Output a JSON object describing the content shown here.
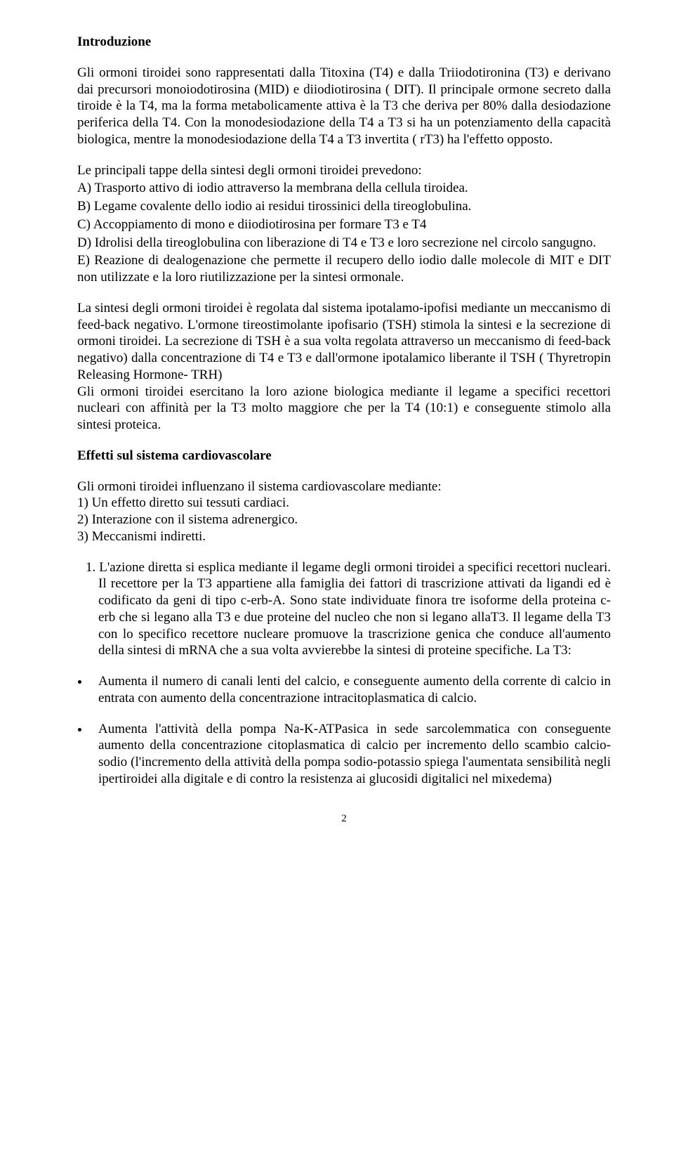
{
  "page": {
    "background_color": "#ffffff",
    "text_color": "#000000",
    "font_family": "Times New Roman",
    "body_font_size_pt": 14,
    "page_number_font_size_pt": 11
  },
  "heading1": "Introduzione",
  "para1": "Gli ormoni tiroidei sono rappresentati dalla Titoxina (T4) e dalla Triiodotironina (T3) e derivano dai precursori monoiodotirosina (MID) e diiodiotirosina ( DIT). Il principale ormone secreto dalla tiroide è la T4, ma la forma metabolicamente attiva è la T3 che deriva per 80% dalla desiodazione periferica della T4. Con la monodesiodazione della T4 a T3 si ha un potenziamento della capacità biologica, mentre la monodesiodazione della T4 a T3 invertita ( rT3) ha l'effetto opposto.",
  "para2_intro": "Le principali tappe della sintesi degli ormoni tiroidei prevedono:",
  "para2_a": "A) Trasporto attivo di iodio attraverso la membrana della cellula tiroidea.",
  "para2_b": "B) Legame covalente dello iodio ai residui tirossinici della tireoglobulina.",
  "para2_c": "C) Accoppiamento di mono e diiodiotirosina per formare T3 e T4",
  "para2_d": "D) Idrolisi della tireoglobulina con liberazione di T4 e T3 e loro secrezione nel circolo sangugno.",
  "para2_e": "E) Reazione di dealogenazione che permette il recupero dello iodio dalle molecole di MIT e DIT non utilizzate e la loro riutilizzazione per la sintesi ormonale.",
  "para3": "La sintesi degli ormoni tiroidei è regolata dal sistema ipotalamo-ipofisi mediante un meccanismo di feed-back negativo. L'ormone tireostimolante ipofisario (TSH) stimola la sintesi e la secrezione di ormoni tiroidei. La secrezione di  TSH è a sua volta regolata attraverso un meccanismo di feed-back negativo) dalla concentrazione di T4 e T3 e dall'ormone ipotalamico liberante il TSH ( Thyretropin Releasing Hormone- TRH)",
  "para3b": "Gli ormoni tiroidei esercitano la loro azione biologica mediante il legame a specifici recettori  nucleari con affinità per la T3 molto maggiore che per la T4 (10:1) e conseguente stimolo alla sintesi proteica.",
  "heading2": "Effetti sul sistema cardiovascolare",
  "list_intro": "Gli ormoni tiroidei influenzano il sistema cardiovascolare mediante:",
  "list_items": [
    "1)  Un effetto diretto sui tessuti cardiaci.",
    "2)  Interazione con il sistema adrenergico.",
    "3)  Meccanismi indiretti."
  ],
  "num_para1": "1. L'azione diretta si esplica mediante il legame degli ormoni tiroidei a specifici recettori nucleari. Il recettore per la T3 appartiene alla famiglia dei fattori di trascrizione attivati  da ligandi ed è codificato da geni di tipo c-erb-A. Sono state individuate finora tre isoforme  della proteina c-erb che si legano alla T3  e due proteine del nucleo che non si legano allaT3. Il legame della T3 con lo specifico recettore nucleare promuove la trascrizione  genica che conduce all'aumento  della sintesi di mRNA  che a sua volta avvierebbe la sintesi di proteine specifiche. La T3:",
  "bullet1": "Aumenta il numero di canali lenti del calcio, e conseguente aumento della corrente di calcio in entrata con aumento della concentrazione intracitoplasmatica di calcio.",
  "bullet2": "Aumenta l'attività della pompa Na-K-ATPasica in sede sarcolemmatica con conseguente aumento della concentrazione citoplasmatica  di calcio per incremento dello scambio calcio-sodio (l'incremento della attività della pompa sodio-potassio spiega l'aumentata sensibilità negli ipertiroidei alla digitale e di contro la resistenza ai glucosidi digitalici nel mixedema)",
  "page_number": "2"
}
